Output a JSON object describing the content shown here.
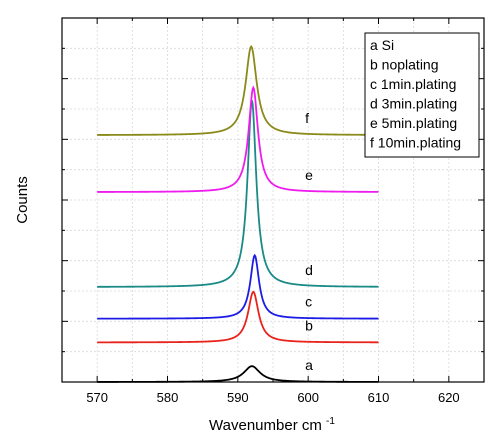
{
  "chart_data": {
    "type": "line",
    "xlabel": "Wavenumber cm",
    "xlabel_superscript": "-1",
    "ylabel": "Counts",
    "xlim": [
      565,
      625
    ],
    "ylim": [
      0,
      1.15
    ],
    "xticks": [
      570,
      580,
      590,
      600,
      610,
      620
    ],
    "y_tick_labels": "none",
    "grid": true,
    "legend_placement": "top-right",
    "legend": [
      "a Si",
      "b noplating",
      "c 1min.plating",
      "d 3min.plating",
      "e 5min.plating",
      "f 10min.plating"
    ],
    "series": [
      {
        "name": "a",
        "color": "#000000",
        "baseline": 0.0,
        "peak_x": 592.0,
        "peak_height": 0.05,
        "width": 2.8
      },
      {
        "name": "b",
        "color": "#e8231c",
        "baseline": 0.125,
        "peak_x": 592.2,
        "peak_height": 0.16,
        "width": 1.8
      },
      {
        "name": "c",
        "color": "#1c1ce6",
        "baseline": 0.2,
        "peak_x": 592.4,
        "peak_height": 0.2,
        "width": 1.5
      },
      {
        "name": "d",
        "color": "#1a8a86",
        "baseline": 0.3,
        "peak_x": 592.0,
        "peak_height": 0.59,
        "width": 1.5
      },
      {
        "name": "e",
        "color": "#ee1cee",
        "baseline": 0.6,
        "peak_x": 592.2,
        "peak_height": 0.33,
        "width": 1.6
      },
      {
        "name": "f",
        "color": "#8a8a1a",
        "baseline": 0.78,
        "peak_x": 591.9,
        "peak_height": 0.28,
        "width": 1.9
      }
    ],
    "x_range_plotted": [
      570,
      610
    ]
  }
}
